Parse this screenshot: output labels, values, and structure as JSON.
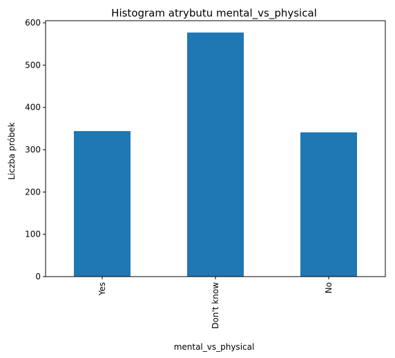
{
  "chart_data": {
    "type": "bar",
    "title": "Histogram atrybutu mental_vs_physical",
    "xlabel": "mental_vs_physical",
    "ylabel": "Liczba próbek",
    "categories": [
      "Yes",
      "Don't know",
      "No"
    ],
    "values": [
      344,
      577,
      341
    ],
    "ylim": [
      0,
      605
    ],
    "yticks": [
      0,
      100,
      200,
      300,
      400,
      500,
      600
    ],
    "bar_color": "#1f77b4",
    "grid": false,
    "legend": "none"
  }
}
